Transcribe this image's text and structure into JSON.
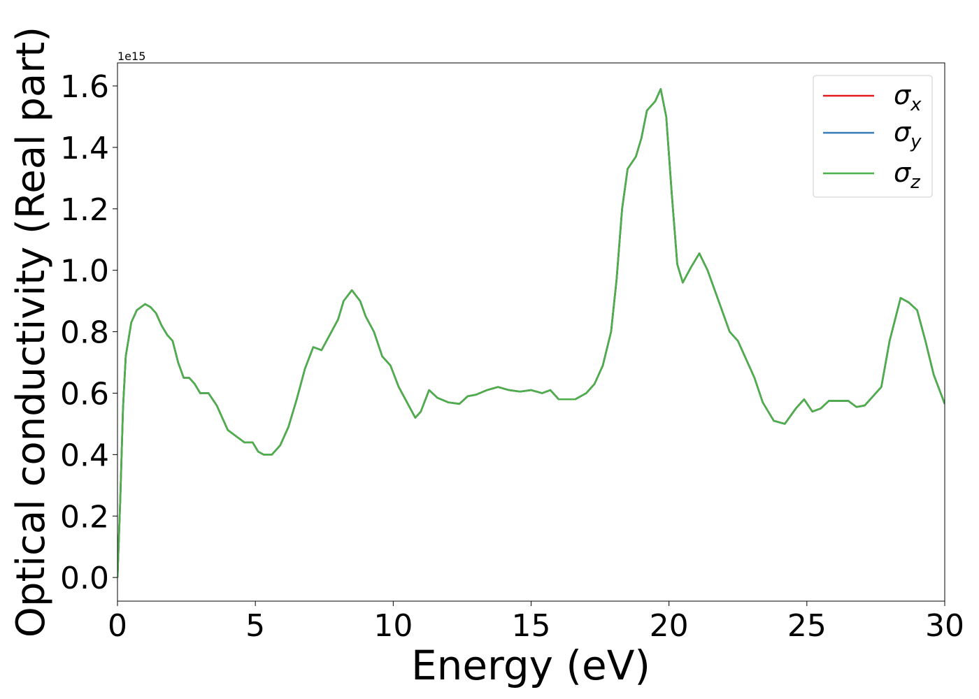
{
  "chart_data": {
    "type": "line",
    "xlabel": "Energy (eV)",
    "ylabel": "Optical conductivity (Real part)",
    "y_offset_label": "1e15",
    "x": [
      0,
      0.1,
      0.2,
      0.3,
      0.5,
      0.7,
      1.0,
      1.2,
      1.4,
      1.6,
      1.8,
      2.0,
      2.2,
      2.4,
      2.6,
      2.8,
      3.0,
      3.3,
      3.6,
      3.8,
      4.0,
      4.3,
      4.6,
      4.9,
      5.1,
      5.3,
      5.6,
      5.9,
      6.2,
      6.5,
      6.8,
      7.1,
      7.4,
      7.7,
      8.0,
      8.2,
      8.5,
      8.8,
      9.0,
      9.3,
      9.6,
      9.9,
      10.2,
      10.5,
      10.8,
      11.0,
      11.3,
      11.6,
      12.0,
      12.4,
      12.7,
      13.0,
      13.4,
      13.8,
      14.2,
      14.6,
      15.0,
      15.4,
      15.7,
      16.0,
      16.3,
      16.6,
      17.0,
      17.3,
      17.6,
      17.9,
      18.1,
      18.3,
      18.5,
      18.8,
      19.0,
      19.2,
      19.5,
      19.7,
      19.9,
      20.1,
      20.3,
      20.5,
      20.8,
      21.1,
      21.4,
      21.8,
      22.2,
      22.5,
      22.8,
      23.1,
      23.4,
      23.8,
      24.2,
      24.6,
      24.9,
      25.2,
      25.5,
      25.8,
      26.2,
      26.5,
      26.8,
      27.1,
      27.4,
      27.7,
      28.0,
      28.4,
      28.7,
      29.0,
      29.3,
      29.6,
      30.0
    ],
    "series": [
      {
        "name": "σx",
        "color": "#e41a1c",
        "values": [
          0.0,
          0.25,
          0.55,
          0.72,
          0.83,
          0.87,
          0.89,
          0.88,
          0.86,
          0.82,
          0.79,
          0.77,
          0.7,
          0.65,
          0.65,
          0.63,
          0.6,
          0.6,
          0.56,
          0.52,
          0.48,
          0.46,
          0.44,
          0.44,
          0.41,
          0.4,
          0.4,
          0.43,
          0.49,
          0.58,
          0.68,
          0.75,
          0.74,
          0.79,
          0.84,
          0.9,
          0.935,
          0.9,
          0.85,
          0.8,
          0.72,
          0.69,
          0.62,
          0.57,
          0.52,
          0.54,
          0.61,
          0.585,
          0.57,
          0.565,
          0.59,
          0.595,
          0.61,
          0.62,
          0.61,
          0.605,
          0.61,
          0.6,
          0.61,
          0.58,
          0.58,
          0.58,
          0.6,
          0.63,
          0.69,
          0.8,
          0.97,
          1.2,
          1.33,
          1.37,
          1.43,
          1.52,
          1.55,
          1.59,
          1.5,
          1.25,
          1.02,
          0.96,
          1.01,
          1.055,
          1.0,
          0.9,
          0.8,
          0.77,
          0.71,
          0.65,
          0.57,
          0.51,
          0.5,
          0.55,
          0.58,
          0.54,
          0.55,
          0.575,
          0.575,
          0.575,
          0.555,
          0.56,
          0.59,
          0.62,
          0.77,
          0.91,
          0.895,
          0.87,
          0.77,
          0.66,
          0.565
        ]
      },
      {
        "name": "σy",
        "color": "#377eb8",
        "values": [
          0.0,
          0.25,
          0.55,
          0.72,
          0.83,
          0.87,
          0.89,
          0.88,
          0.86,
          0.82,
          0.79,
          0.77,
          0.7,
          0.65,
          0.65,
          0.63,
          0.6,
          0.6,
          0.56,
          0.52,
          0.48,
          0.46,
          0.44,
          0.44,
          0.41,
          0.4,
          0.4,
          0.43,
          0.49,
          0.58,
          0.68,
          0.75,
          0.74,
          0.79,
          0.84,
          0.9,
          0.935,
          0.9,
          0.85,
          0.8,
          0.72,
          0.69,
          0.62,
          0.57,
          0.52,
          0.54,
          0.61,
          0.585,
          0.57,
          0.565,
          0.59,
          0.595,
          0.61,
          0.62,
          0.61,
          0.605,
          0.61,
          0.6,
          0.61,
          0.58,
          0.58,
          0.58,
          0.6,
          0.63,
          0.69,
          0.8,
          0.97,
          1.2,
          1.33,
          1.37,
          1.43,
          1.52,
          1.55,
          1.59,
          1.5,
          1.25,
          1.02,
          0.96,
          1.01,
          1.055,
          1.0,
          0.9,
          0.8,
          0.77,
          0.71,
          0.65,
          0.57,
          0.51,
          0.5,
          0.55,
          0.58,
          0.54,
          0.55,
          0.575,
          0.575,
          0.575,
          0.555,
          0.56,
          0.59,
          0.62,
          0.77,
          0.91,
          0.895,
          0.87,
          0.77,
          0.66,
          0.565
        ]
      },
      {
        "name": "σz",
        "color": "#4daf4a",
        "values": [
          0.0,
          0.25,
          0.55,
          0.72,
          0.83,
          0.87,
          0.89,
          0.88,
          0.86,
          0.82,
          0.79,
          0.77,
          0.7,
          0.65,
          0.65,
          0.63,
          0.6,
          0.6,
          0.56,
          0.52,
          0.48,
          0.46,
          0.44,
          0.44,
          0.41,
          0.4,
          0.4,
          0.43,
          0.49,
          0.58,
          0.68,
          0.75,
          0.74,
          0.79,
          0.84,
          0.9,
          0.935,
          0.9,
          0.85,
          0.8,
          0.72,
          0.69,
          0.62,
          0.57,
          0.52,
          0.54,
          0.61,
          0.585,
          0.57,
          0.565,
          0.59,
          0.595,
          0.61,
          0.62,
          0.61,
          0.605,
          0.61,
          0.6,
          0.61,
          0.58,
          0.58,
          0.58,
          0.6,
          0.63,
          0.69,
          0.8,
          0.97,
          1.2,
          1.33,
          1.37,
          1.43,
          1.52,
          1.55,
          1.59,
          1.5,
          1.25,
          1.02,
          0.96,
          1.01,
          1.055,
          1.0,
          0.9,
          0.8,
          0.77,
          0.71,
          0.65,
          0.57,
          0.51,
          0.5,
          0.55,
          0.58,
          0.54,
          0.55,
          0.575,
          0.575,
          0.575,
          0.555,
          0.56,
          0.59,
          0.62,
          0.77,
          0.91,
          0.895,
          0.87,
          0.77,
          0.66,
          0.565
        ]
      }
    ],
    "xlim": [
      0,
      30
    ],
    "xticks": [
      0,
      5,
      10,
      15,
      20,
      25,
      30
    ],
    "ylim": [
      -0.077,
      1.675
    ],
    "yticks": [
      {
        "value": 0,
        "label": "0.0"
      },
      0.2,
      0.4,
      0.6,
      0.8,
      {
        "value": 1,
        "label": "1.0"
      },
      1.2,
      1.4,
      1.6
    ],
    "grid": false,
    "legend": "upper right"
  }
}
